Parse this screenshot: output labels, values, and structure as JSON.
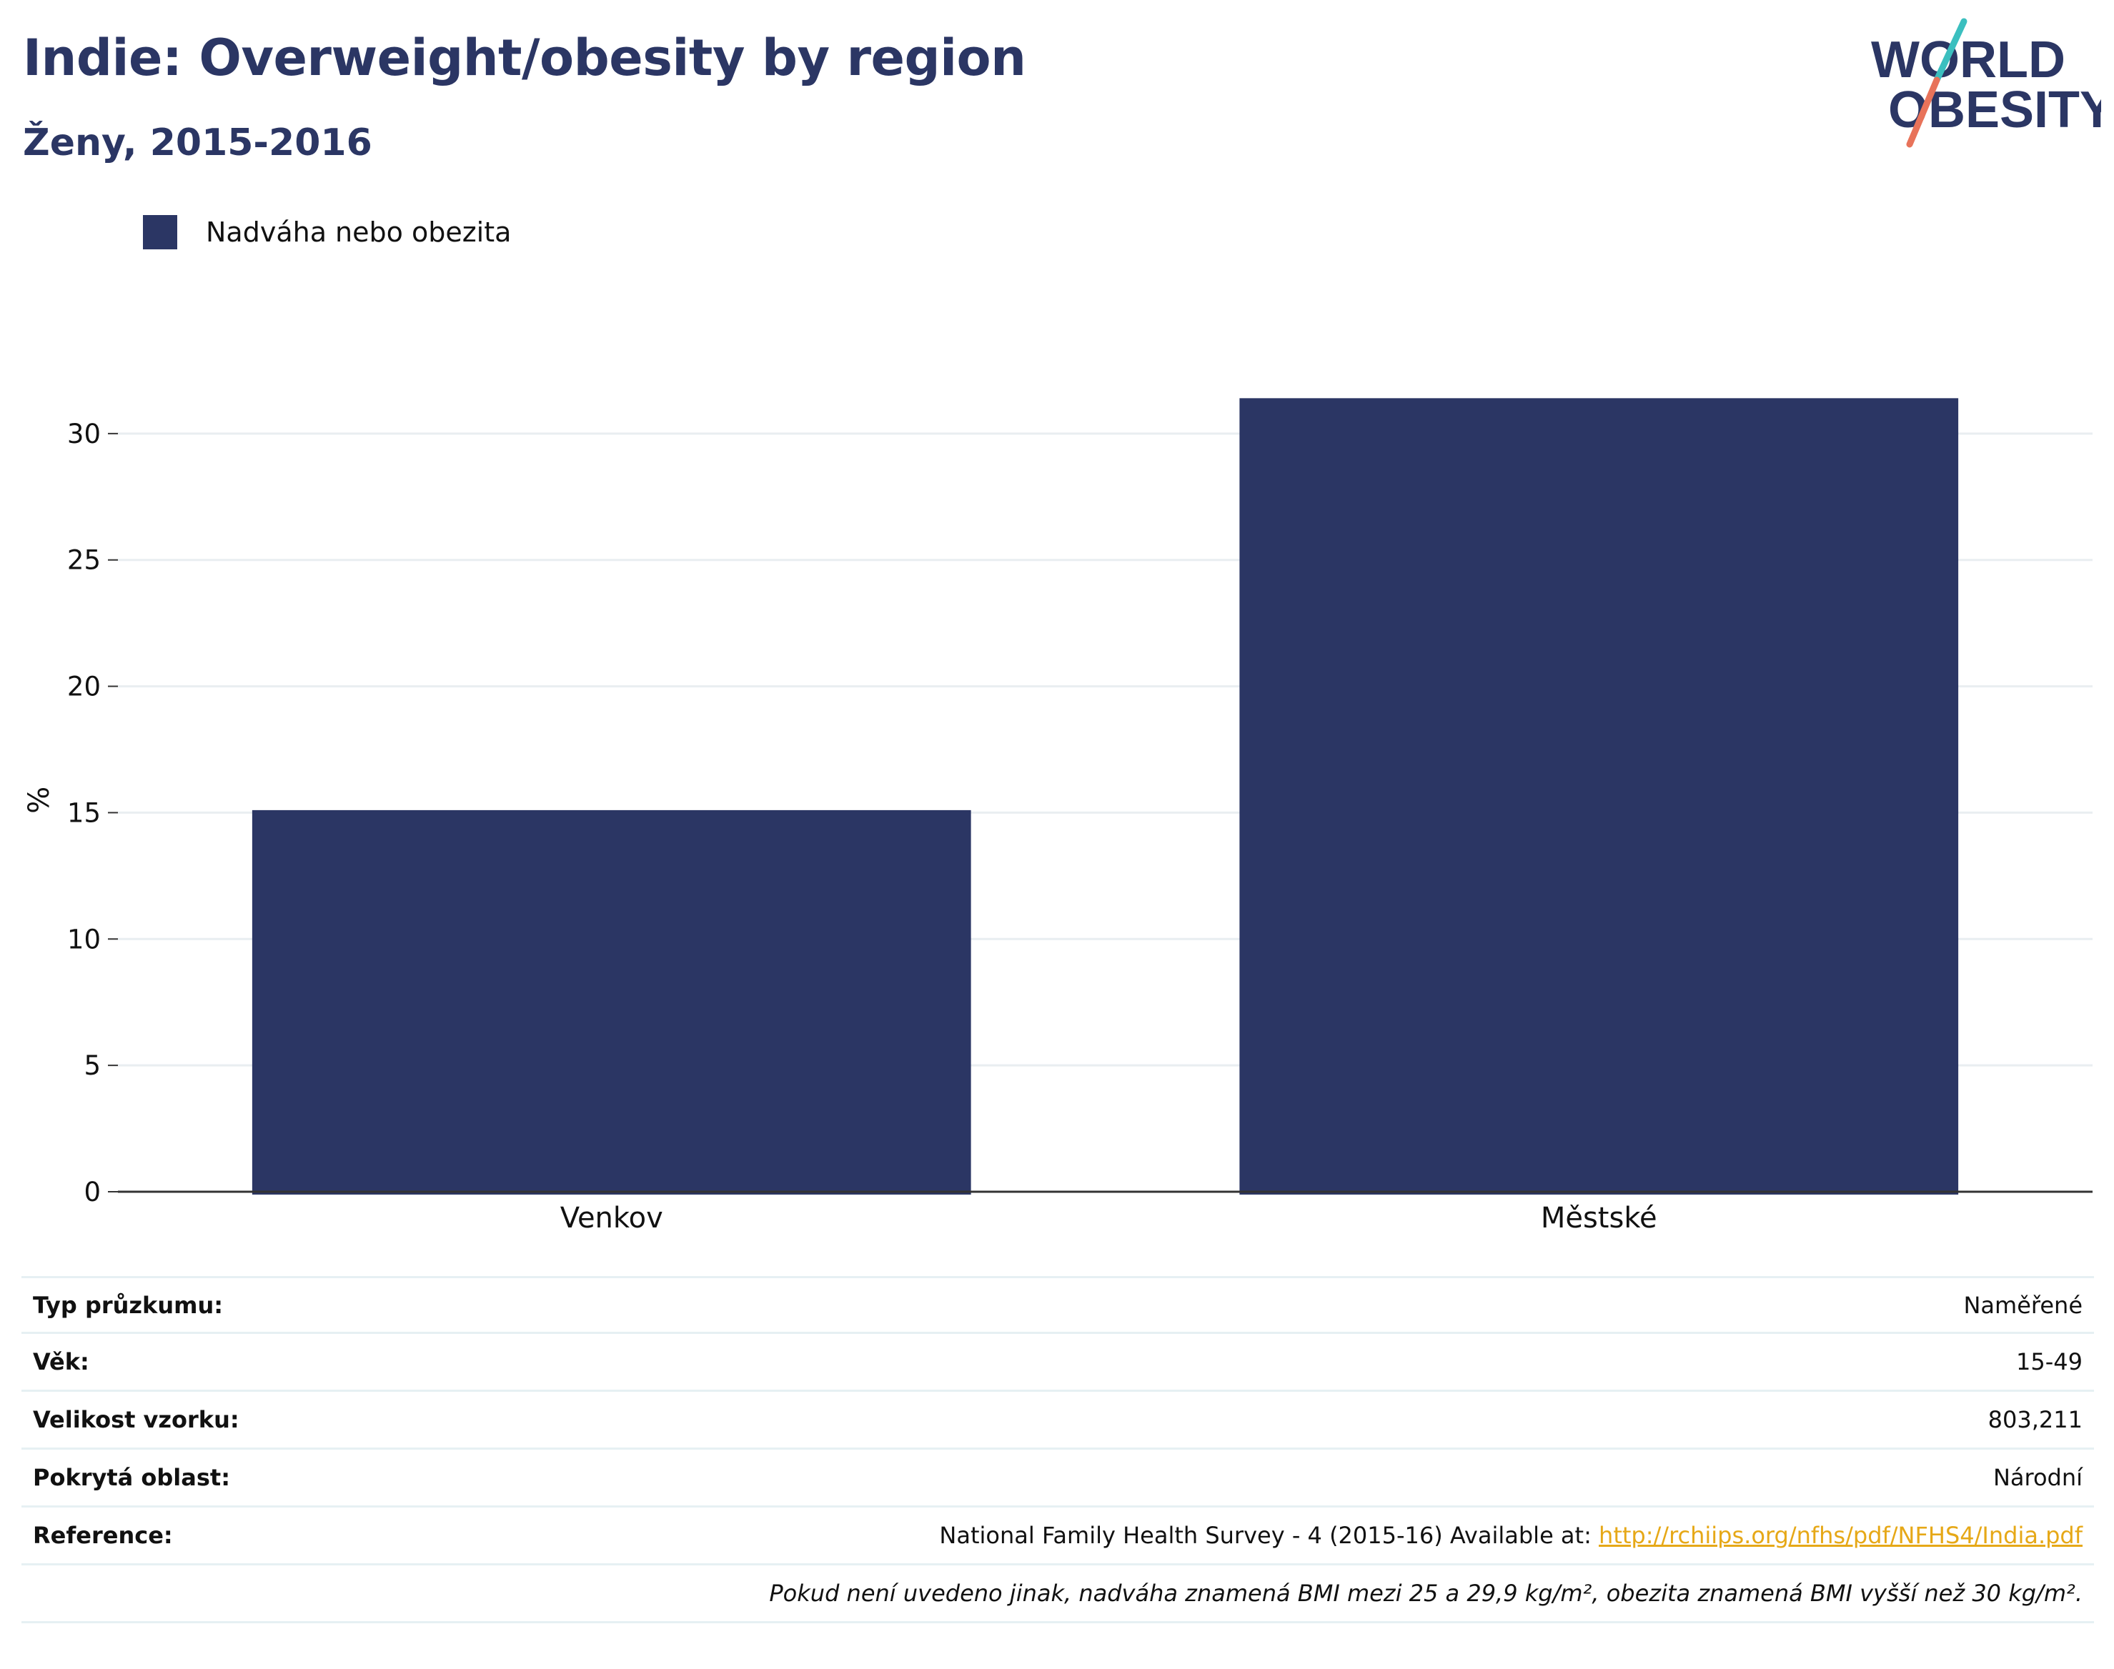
{
  "header": {
    "title": "Indie: Overweight/obesity by region",
    "subtitle": "Ženy, 2015-2016"
  },
  "logo": {
    "line1": "WORLD",
    "line2": "OBESITY",
    "colors": {
      "text": "#2b3664",
      "slash_top": "#3bbfbf",
      "slash_bottom": "#e8735a"
    }
  },
  "legend": {
    "items": [
      {
        "label": "Nadváha nebo obezita",
        "color": "#2b3664"
      }
    ]
  },
  "chart_data": {
    "type": "bar",
    "categories": [
      "Venkov",
      "Městské"
    ],
    "series": [
      {
        "name": "Nadváha nebo obezita",
        "values": [
          15.1,
          31.4
        ],
        "color": "#2b3664"
      }
    ],
    "ylabel": "%",
    "ylim": [
      0,
      35
    ],
    "yticks": [
      0,
      5,
      10,
      15,
      20,
      25,
      30
    ],
    "grid": true,
    "legend_position": "top-left"
  },
  "info": {
    "rows": [
      {
        "label": "Typ průzkumu:",
        "value": "Naměřené"
      },
      {
        "label": "Věk:",
        "value": "15-49"
      },
      {
        "label": "Velikost vzorku:",
        "value": "803,211"
      },
      {
        "label": "Pokrytá oblast:",
        "value": "Národní"
      }
    ],
    "reference": {
      "label": "Reference:",
      "text": "National Family Health Survey - 4 (2015-16) Available at: ",
      "link": "http://rchiips.org/nfhs/pdf/NFHS4/India.pdf"
    },
    "note": "Pokud není uvedeno jinak, nadváha znamená BMI mezi 25 a 29,9 kg/m², obezita znamená BMI vyšší než 30 kg/m²."
  }
}
